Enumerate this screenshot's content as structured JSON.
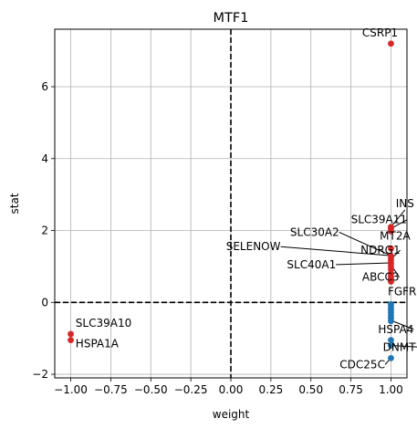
{
  "chart_data": {
    "type": "scatter",
    "title": "MTF1",
    "xlabel": "weight",
    "ylabel": "stat",
    "xlim": [
      -1.1,
      1.1
    ],
    "ylim": [
      -2.1,
      7.6
    ],
    "xticks": [
      -1.0,
      -0.75,
      -0.5,
      -0.25,
      0.0,
      0.25,
      0.5,
      0.75,
      1.0
    ],
    "xtick_labels": [
      "−1.00",
      "−0.75",
      "−0.50",
      "−0.25",
      "0.00",
      "0.25",
      "0.50",
      "0.75",
      "1.00"
    ],
    "yticks": [
      -2,
      0,
      2,
      4,
      6
    ],
    "ytick_labels": [
      "−2",
      "0",
      "2",
      "4",
      "6"
    ],
    "grid": true,
    "reference_lines": {
      "x": 0,
      "y": 0,
      "style": "dashed"
    },
    "colors": {
      "positive": "#d62728",
      "negative": "#1f77b4"
    },
    "points": [
      {
        "x": 1.0,
        "y": 7.2,
        "color": "positive"
      },
      {
        "x": 1.0,
        "y": 2.1,
        "color": "positive"
      },
      {
        "x": 1.0,
        "y": 2.05,
        "color": "positive"
      },
      {
        "x": 1.0,
        "y": 1.98,
        "color": "positive"
      },
      {
        "x": 1.0,
        "y": 1.5,
        "color": "positive"
      },
      {
        "x": 1.0,
        "y": 1.3,
        "color": "positive"
      },
      {
        "x": 1.0,
        "y": 1.22,
        "color": "positive"
      },
      {
        "x": 1.0,
        "y": 1.15,
        "color": "positive"
      },
      {
        "x": 1.0,
        "y": 1.08,
        "color": "positive"
      },
      {
        "x": 1.0,
        "y": 1.0,
        "color": "positive"
      },
      {
        "x": 1.0,
        "y": 0.92,
        "color": "positive"
      },
      {
        "x": 1.0,
        "y": 0.8,
        "color": "positive"
      },
      {
        "x": 1.0,
        "y": 0.72,
        "color": "positive"
      },
      {
        "x": 1.0,
        "y": 0.65,
        "color": "positive"
      },
      {
        "x": 1.0,
        "y": 0.58,
        "color": "positive"
      },
      {
        "x": 1.0,
        "y": -0.05,
        "color": "negative"
      },
      {
        "x": 1.0,
        "y": -0.12,
        "color": "negative"
      },
      {
        "x": 1.0,
        "y": -0.2,
        "color": "negative"
      },
      {
        "x": 1.0,
        "y": -0.28,
        "color": "negative"
      },
      {
        "x": 1.0,
        "y": -0.36,
        "color": "negative"
      },
      {
        "x": 1.0,
        "y": -0.44,
        "color": "negative"
      },
      {
        "x": 1.0,
        "y": -0.52,
        "color": "negative"
      },
      {
        "x": 1.0,
        "y": -1.05,
        "color": "negative"
      },
      {
        "x": 1.0,
        "y": -1.2,
        "color": "negative"
      },
      {
        "x": 1.0,
        "y": -1.55,
        "color": "negative"
      },
      {
        "x": -1.0,
        "y": -0.88,
        "color": "positive"
      },
      {
        "x": -1.0,
        "y": -1.05,
        "color": "positive"
      }
    ],
    "annotations": [
      {
        "text": "CSRP1",
        "x": 0.99,
        "y": 7.2,
        "tx": 0.82,
        "ty": 7.4,
        "line": false
      },
      {
        "text": "INS",
        "x": 1.0,
        "y": 2.1,
        "tx": 1.03,
        "ty": 2.65,
        "line": true
      },
      {
        "text": "SLC39A11",
        "x": 1.0,
        "y": 2.05,
        "tx": 0.75,
        "ty": 2.2,
        "line": true
      },
      {
        "text": "MT2A",
        "x": 1.0,
        "y": 1.5,
        "tx": 0.93,
        "ty": 1.75,
        "line": false
      },
      {
        "text": "SLC30A2",
        "x": 1.0,
        "y": 1.3,
        "tx": 0.37,
        "ty": 1.85,
        "line": true
      },
      {
        "text": "SELENOW",
        "x": 1.0,
        "y": 1.3,
        "tx": -0.03,
        "ty": 1.45,
        "line": true
      },
      {
        "text": "NDRG1",
        "x": 1.0,
        "y": 1.2,
        "tx": 0.81,
        "ty": 1.35,
        "line": true
      },
      {
        "text": "SLC40A1",
        "x": 1.0,
        "y": 1.1,
        "tx": 0.35,
        "ty": 0.95,
        "line": true
      },
      {
        "text": "ABCC3",
        "x": 1.0,
        "y": 1.05,
        "tx": 0.82,
        "ty": 0.6,
        "line": true
      },
      {
        "text": "FGFR1",
        "x": 1.0,
        "y": 0.0,
        "tx": 0.98,
        "ty": 0.2,
        "line": false
      },
      {
        "text": "HSPA4",
        "x": 1.0,
        "y": -0.5,
        "tx": 0.92,
        "ty": -0.85,
        "line": true
      },
      {
        "text": "DNMT1",
        "x": 1.0,
        "y": -1.2,
        "tx": 0.95,
        "ty": -1.35,
        "line": true
      },
      {
        "text": "CDC25C",
        "x": 1.0,
        "y": -1.55,
        "tx": 0.68,
        "ty": -1.83,
        "line": true
      },
      {
        "text": "SLC39A10",
        "x": -1.0,
        "y": -0.88,
        "tx": -0.97,
        "ty": -0.68,
        "line": false
      },
      {
        "text": "HSPA1A",
        "x": -1.0,
        "y": -1.05,
        "tx": -0.97,
        "ty": -1.25,
        "line": false
      }
    ]
  }
}
